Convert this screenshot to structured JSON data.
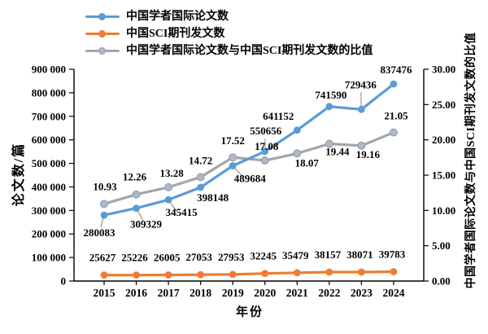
{
  "chart_data": {
    "type": "line",
    "categories": [
      "2015",
      "2016",
      "2017",
      "2018",
      "2019",
      "2020",
      "2021",
      "2022",
      "2023",
      "2024"
    ],
    "series": [
      {
        "name": "中国学者国际论文数",
        "axis": "left",
        "color": "#5B9BD5",
        "values": [
          280083,
          309329,
          345415,
          398148,
          489684,
          550656,
          641152,
          741590,
          729436,
          837476
        ],
        "labels": [
          "280083",
          "309329",
          "345415",
          "398148",
          "489684",
          "550656",
          "641152",
          "741590",
          "729436",
          "837476"
        ]
      },
      {
        "name": "中国SCI期刊发文数",
        "axis": "left",
        "color": "#ED7D31",
        "values": [
          25627,
          25226,
          26005,
          27053,
          27953,
          32245,
          35479,
          38157,
          38071,
          39783
        ],
        "labels": [
          "25627",
          "25226",
          "26005",
          "27053",
          "27953",
          "32245",
          "35479",
          "38157",
          "38071",
          "39783"
        ]
      },
      {
        "name": "中国学者国际论文数与中国SCI期刊发文数的比值",
        "axis": "right",
        "color": "#A6A6A6",
        "marker_fill": "#AEB9C9",
        "marker_stroke": "#94A0B0",
        "values": [
          10.93,
          12.26,
          13.28,
          14.72,
          17.52,
          17.08,
          18.07,
          19.44,
          19.16,
          21.05
        ],
        "labels": [
          "10.93",
          "12.26",
          "13.28",
          "14.72",
          "17.52",
          "17.08",
          "18.07",
          "19.44",
          "19.16",
          "21.05"
        ]
      }
    ],
    "x_axis": {
      "title": "年份"
    },
    "left_axis": {
      "title": "论文数/篇",
      "min": 0,
      "max": 900000,
      "tick_labels": [
        "0",
        "100 000",
        "200 000",
        "300 000",
        "400 000",
        "500 000",
        "600 000",
        "700 000",
        "800 000",
        "900 000"
      ]
    },
    "right_axis": {
      "title": "中国学者国际论文数与中国SCI期刊发文数的比值",
      "min": 0,
      "max": 30,
      "tick_labels": [
        "0.00",
        "5.00",
        "10.00",
        "15.00",
        "20.00",
        "25.00",
        "30.00"
      ]
    },
    "legend_position": "top-left",
    "grid": false,
    "layout_hints": {
      "draw_order": [
        2,
        0,
        1
      ],
      "label_offsets": [
        [
          [
            -6,
            26
          ],
          [
            12,
            24
          ],
          [
            16,
            20
          ],
          [
            15,
            17
          ],
          [
            21,
            20
          ],
          [
            1,
            -21
          ],
          [
            -23,
            -13
          ],
          [
            2,
            -10
          ],
          [
            -1,
            -26
          ],
          [
            3,
            -13
          ]
        ],
        [
          [
            -2,
            -17
          ],
          [
            -2,
            -17
          ],
          [
            -2,
            -17
          ],
          [
            -2,
            -17
          ],
          [
            -2,
            -17
          ],
          [
            -2,
            -17
          ],
          [
            -2,
            -17
          ],
          [
            -2,
            -17
          ],
          [
            -2,
            -17
          ],
          [
            -2,
            -17
          ]
        ],
        [
          [
            1,
            -17
          ],
          [
            -2,
            -17
          ],
          [
            4,
            -13
          ],
          [
            0,
            -16
          ],
          [
            0,
            -16
          ],
          [
            2,
            -13
          ],
          [
            12,
            16
          ],
          [
            10,
            14
          ],
          [
            8,
            15
          ],
          [
            3,
            -16
          ]
        ]
      ],
      "leaders": [
        [
          127,
          267,
          124,
          279
        ],
        [
          169,
          258,
          176,
          271
        ],
        [
          209,
          248,
          217,
          259
        ],
        [
          288,
          206,
          299,
          217
        ],
        [
          326,
          170,
          326,
          183
        ],
        [
          444,
          131,
          444,
          113
        ]
      ]
    }
  },
  "colors": {
    "text": "#000000",
    "axis": "#000000",
    "leader": "#808080",
    "background": "#FFFFFF"
  }
}
